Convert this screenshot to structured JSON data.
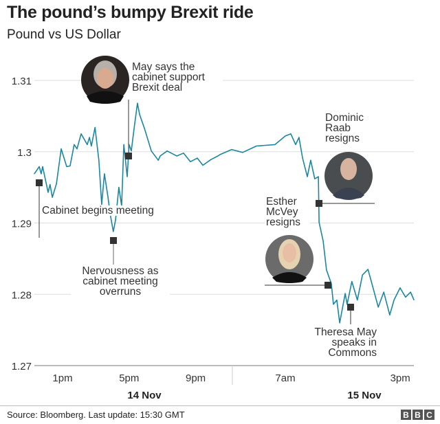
{
  "header": {
    "title": "The pound’s bumpy Brexit ride",
    "subtitle": "Pound vs US Dollar"
  },
  "footer": {
    "source": "Source: Bloomberg. Last update: 15:30 GMT",
    "logo": "BBC"
  },
  "colors": {
    "line": "#1a86a0",
    "marker": "#333333",
    "grid": "#dddddd"
  },
  "chart_data": {
    "type": "line",
    "title": "The pound’s bumpy Brexit ride",
    "subtitle": "Pound vs US Dollar",
    "ylim": [
      1.27,
      1.31
    ],
    "y_ticks": [
      "1.27",
      "1.28",
      "1.29",
      "1.3",
      "1.31"
    ],
    "x_ticks": [
      {
        "label": "1pm",
        "time": "14 Nov 13:00"
      },
      {
        "label": "5pm",
        "time": "14 Nov 17:00"
      },
      {
        "label": "9pm",
        "time": "14 Nov 21:00"
      },
      {
        "label": "7am",
        "time": "15 Nov 07:00"
      },
      {
        "label": "3pm",
        "time": "15 Nov 15:00"
      }
    ],
    "date_labels": [
      "14 Nov",
      "15 Nov"
    ],
    "grid": true,
    "series": [
      {
        "points": [
          [
            "14 Nov 11:18",
            1.2969
          ],
          [
            "14 Nov 11:36",
            1.2979
          ],
          [
            "14 Nov 11:43",
            1.2969
          ],
          [
            "14 Nov 11:48",
            1.2979
          ],
          [
            "14 Nov 12:08",
            1.2943
          ],
          [
            "14 Nov 12:15",
            1.2954
          ],
          [
            "14 Nov 12:23",
            1.2936
          ],
          [
            "14 Nov 12:38",
            1.2955
          ],
          [
            "14 Nov 12:55",
            1.3004
          ],
          [
            "14 Nov 13:15",
            1.2979
          ],
          [
            "14 Nov 13:27",
            1.298
          ],
          [
            "14 Nov 13:42",
            1.301
          ],
          [
            "14 Nov 13:52",
            1.3004
          ],
          [
            "14 Nov 14:07",
            1.3025
          ],
          [
            "14 Nov 14:29",
            1.301
          ],
          [
            "14 Nov 14:37",
            1.302
          ],
          [
            "14 Nov 14:44",
            1.3008
          ],
          [
            "14 Nov 14:57",
            1.3034
          ],
          [
            "14 Nov 15:11",
            1.2988
          ],
          [
            "14 Nov 15:21",
            1.2926
          ],
          [
            "14 Nov 15:31",
            1.2969
          ],
          [
            "14 Nov 15:44",
            1.2936
          ],
          [
            "14 Nov 15:51",
            1.2914
          ],
          [
            "14 Nov 16:03",
            1.2888
          ],
          [
            "14 Nov 16:11",
            1.2904
          ],
          [
            "14 Nov 16:23",
            1.295
          ],
          [
            "14 Nov 16:33",
            1.2924
          ],
          [
            "14 Nov 16:41",
            1.301
          ],
          [
            "14 Nov 16:53",
            1.2965
          ],
          [
            "14 Nov 17:00",
            1.301
          ],
          [
            "14 Nov 17:08",
            1.3001
          ],
          [
            "14 Nov 17:18",
            1.3033
          ],
          [
            "14 Nov 17:30",
            1.3068
          ],
          [
            "14 Nov 17:38",
            1.3052
          ],
          [
            "14 Nov 17:55",
            1.3033
          ],
          [
            "14 Nov 18:20",
            1.3001
          ],
          [
            "14 Nov 18:45",
            1.2988
          ],
          [
            "14 Nov 18:52",
            1.2994
          ],
          [
            "14 Nov 19:17",
            1.3001
          ],
          [
            "14 Nov 19:52",
            1.2994
          ],
          [
            "14 Nov 20:16",
            1.2998
          ],
          [
            "14 Nov 20:41",
            1.2986
          ],
          [
            "14 Nov 21:06",
            1.2991
          ],
          [
            "14 Nov 21:26",
            1.2981
          ],
          [
            "14 Nov 21:55",
            1.2989
          ],
          [
            "14 Nov 22:20",
            1.2994
          ],
          [
            "14 Nov 22:28",
            1.2996
          ],
          [
            "14 Nov 23:10",
            1.3003
          ],
          [
            "15 Nov 04:02",
            1.2999
          ],
          [
            "15 Nov 04:59",
            1.3008
          ],
          [
            "15 Nov 06:17",
            1.301
          ],
          [
            "15 Nov 07:00",
            1.3022
          ],
          [
            "15 Nov 07:23",
            1.3025
          ],
          [
            "15 Nov 07:43",
            1.301
          ],
          [
            "15 Nov 07:57",
            1.302
          ],
          [
            "15 Nov 08:12",
            1.2991
          ],
          [
            "15 Nov 08:32",
            1.2965
          ],
          [
            "15 Nov 08:46",
            1.2988
          ],
          [
            "15 Nov 09:03",
            1.2962
          ],
          [
            "15 Nov 09:18",
            1.2965
          ],
          [
            "15 Nov 09:21",
            1.2901
          ],
          [
            "15 Nov 09:38",
            1.2875
          ],
          [
            "15 Nov 09:52",
            1.2834
          ],
          [
            "15 Nov 10:12",
            1.2815
          ],
          [
            "15 Nov 10:21",
            1.2786
          ],
          [
            "15 Nov 10:35",
            1.2792
          ],
          [
            "15 Nov 10:47",
            1.276
          ],
          [
            "15 Nov 11:10",
            1.2801
          ],
          [
            "15 Nov 11:18",
            1.2786
          ],
          [
            "15 Nov 11:38",
            1.2818
          ],
          [
            "15 Nov 12:01",
            1.2792
          ],
          [
            "15 Nov 12:22",
            1.2827
          ],
          [
            "15 Nov 12:45",
            1.2835
          ],
          [
            "15 Nov 12:59",
            1.2818
          ],
          [
            "15 Nov 13:28",
            1.2782
          ],
          [
            "15 Nov 13:51",
            1.2803
          ],
          [
            "15 Nov 14:16",
            1.2771
          ],
          [
            "15 Nov 14:34",
            1.2792
          ],
          [
            "15 Nov 14:59",
            1.2809
          ],
          [
            "15 Nov 15:22",
            1.2796
          ],
          [
            "15 Nov 15:43",
            1.2803
          ],
          [
            "15 Nov 15:57",
            1.2792
          ]
        ]
      }
    ],
    "annotations": [
      {
        "text": "Cabinet begins meeting"
      },
      {
        "text": "Nervousness as cabinet meeting overruns"
      },
      {
        "text": "May says the cabinet support Brexit deal"
      },
      {
        "text": "Dominic Raab resigns"
      },
      {
        "text": "Esther McVey resigns"
      },
      {
        "text": "Theresa May speaks in Commons"
      }
    ]
  }
}
